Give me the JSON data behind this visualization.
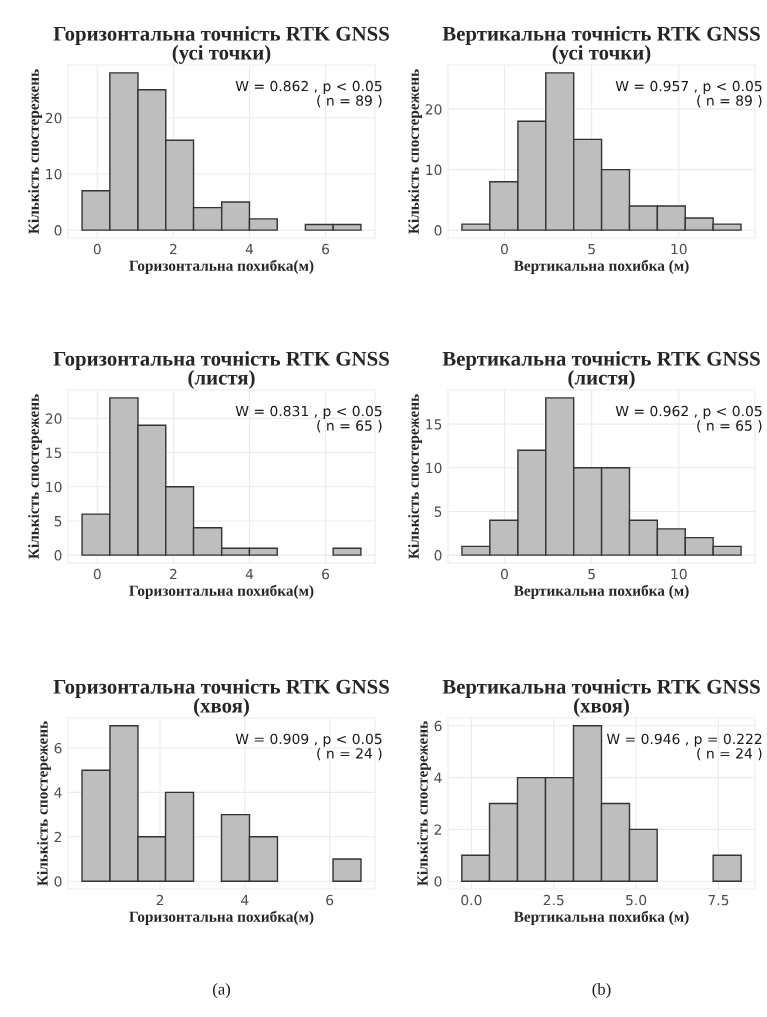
{
  "chart_data": [
    {
      "type": "histogram",
      "title": "Горизонтальна точність RTK GNSS\n(усі точки)",
      "xlabel": "Горизонтальна похибка(м)",
      "ylabel": "Кількість спостережень",
      "color": "#bebebe",
      "bins": [
        -0.4,
        0.33,
        1.07,
        1.8,
        2.53,
        3.27,
        4.0,
        4.73,
        5.47,
        6.2,
        6.93
      ],
      "values": [
        7,
        28,
        25,
        16,
        4,
        5,
        2,
        0,
        1,
        1
      ],
      "xlim": [
        -0.77,
        7.3
      ],
      "xticks": [
        0,
        2,
        4,
        6
      ],
      "ylim": [
        -1.4,
        29.4
      ],
      "yticks": [
        0,
        10,
        20
      ],
      "grid": true,
      "annotations": [
        "W = 0.862 , p < 0.05\n( n = 89 )"
      ]
    },
    {
      "type": "histogram",
      "title": "Вертикальна точність RTK GNSS\n(усі точки)",
      "xlabel": "Вертикальна похибка (м)",
      "ylabel": "Кількість спостережень",
      "color": "#bebebe",
      "bins": [
        -2.44,
        -0.84,
        0.77,
        2.37,
        3.97,
        5.57,
        7.17,
        8.77,
        10.37,
        11.97,
        13.57
      ],
      "values": [
        1,
        8,
        18,
        26,
        15,
        10,
        4,
        4,
        2,
        1
      ],
      "xlim": [
        -3.24,
        14.37
      ],
      "xticks": [
        0,
        5,
        10
      ],
      "ylim": [
        -1.3,
        27.3
      ],
      "yticks": [
        0,
        10,
        20
      ],
      "grid": true,
      "annotations": [
        "W = 0.957 , p < 0.05\n( n = 89 )"
      ]
    },
    {
      "type": "histogram",
      "title": "Горизонтальна точність RTK GNSS\n(листя)",
      "xlabel": "Горизонтальна похибка(м)",
      "ylabel": "Кількість спостережень",
      "color": "#bebebe",
      "bins": [
        -0.4,
        0.33,
        1.07,
        1.8,
        2.53,
        3.27,
        4.0,
        4.73,
        5.47,
        6.2,
        6.93
      ],
      "values": [
        6,
        23,
        19,
        10,
        4,
        1,
        1,
        0,
        0,
        1
      ],
      "xlim": [
        -0.77,
        7.3
      ],
      "xticks": [
        0,
        2,
        4,
        6
      ],
      "ylim": [
        -1.15,
        24.15
      ],
      "yticks": [
        0,
        5,
        10,
        15,
        20
      ],
      "grid": true,
      "annotations": [
        "W = 0.831 , p < 0.05\n( n = 65 )"
      ]
    },
    {
      "type": "histogram",
      "title": "Вертикальна точність RTK GNSS\n(листя)",
      "xlabel": "Вертикальна похибка (м)",
      "ylabel": "Кількість спостережень",
      "color": "#bebebe",
      "bins": [
        -2.44,
        -0.84,
        0.77,
        2.37,
        3.97,
        5.57,
        7.17,
        8.77,
        10.37,
        11.97,
        13.57
      ],
      "values": [
        1,
        4,
        12,
        18,
        10,
        10,
        4,
        3,
        2,
        1
      ],
      "xlim": [
        -3.24,
        14.37
      ],
      "xticks": [
        0,
        5,
        10
      ],
      "ylim": [
        -0.9,
        18.9
      ],
      "yticks": [
        0,
        5,
        10,
        15
      ],
      "grid": true,
      "annotations": [
        "W = 0.962 , p < 0.05\n( n = 65 )"
      ]
    },
    {
      "type": "histogram",
      "title": "Горизонтальна точність RTK GNSS\n(хвоя)",
      "xlabel": "Горизонтальна похибка(м)",
      "ylabel": "Кількість спостережень",
      "color": "#bebebe",
      "bins": [
        0.16,
        0.82,
        1.48,
        2.13,
        2.79,
        3.45,
        4.11,
        4.77,
        5.42,
        6.08,
        6.74
      ],
      "values": [
        5,
        7,
        2,
        4,
        0,
        3,
        2,
        0,
        0,
        1
      ],
      "xlim": [
        -0.17,
        7.07
      ],
      "xticks": [
        2,
        4,
        6
      ],
      "ylim": [
        -0.35,
        7.35
      ],
      "yticks": [
        0,
        2,
        4,
        6
      ],
      "grid": true,
      "annotations": [
        "W = 0.909 , p < 0.05\n( n = 24 )",
        "(a)"
      ]
    },
    {
      "type": "histogram",
      "title": "Вертикальна точність RTK GNSS\n(хвоя)",
      "xlabel": "Вертикальна похибка (м)",
      "ylabel": "Кількість спостережень",
      "color": "#bebebe",
      "bins": [
        -0.29,
        0.55,
        1.4,
        2.25,
        3.1,
        3.95,
        4.8,
        5.64,
        6.49,
        7.34,
        8.19
      ],
      "values": [
        1,
        3,
        4,
        4,
        6,
        3,
        2,
        0,
        0,
        1
      ],
      "xlim": [
        -0.71,
        8.61
      ],
      "xticks": [
        {
          "value": 0,
          "label": "0.0"
        },
        {
          "value": 2.5,
          "label": "2.5"
        },
        {
          "value": 5,
          "label": "5.0"
        },
        {
          "value": 7.5,
          "label": "7.5"
        }
      ],
      "ylim": [
        -0.3,
        6.3
      ],
      "yticks": [
        0,
        2,
        4,
        6
      ],
      "grid": true,
      "annotations": [
        "W = 0.946 , p = 0.222\n( n = 24 )",
        "(b)"
      ]
    }
  ]
}
